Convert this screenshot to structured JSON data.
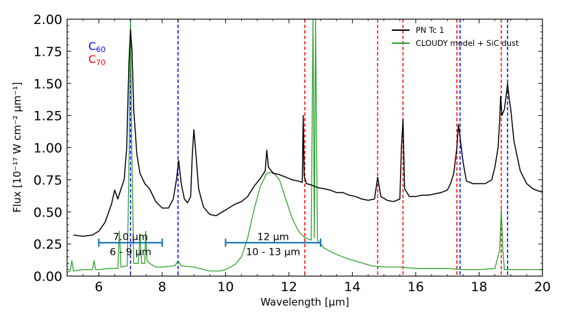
{
  "chart_data": {
    "type": "line",
    "xlabel": "Wavelength [μm]",
    "ylabel": "Flux [10⁻¹⁷ W cm⁻² μm⁻¹]",
    "xlim": [
      5,
      20
    ],
    "ylim": [
      0,
      2.0
    ],
    "x_ticks": [
      6,
      8,
      10,
      12,
      14,
      16,
      18,
      20
    ],
    "x_tick_labels": [
      "6",
      "8",
      "10",
      "12",
      "14",
      "16",
      "18",
      "20"
    ],
    "y_ticks": [
      0.0,
      0.25,
      0.5,
      0.75,
      1.0,
      1.25,
      1.5,
      1.75,
      2.0
    ],
    "y_tick_labels": [
      "0.00",
      "0.25",
      "0.50",
      "0.75",
      "1.00",
      "1.25",
      "1.50",
      "1.75",
      "2.00"
    ],
    "legend": {
      "position": "top-right",
      "entries": [
        {
          "label": "PN Tc 1",
          "color": "#000000"
        },
        {
          "label": "CLOUDY model + SiC dust",
          "color": "#2ca02c"
        }
      ]
    },
    "molecule_labels": [
      {
        "base": "C",
        "sub": "60",
        "color": "#0000ff"
      },
      {
        "base": "C",
        "sub": "70",
        "color": "#ff0000"
      }
    ],
    "c60_lines": [
      7.0,
      8.5,
      17.4,
      18.9
    ],
    "c70_lines": [
      12.5,
      14.8,
      15.6,
      17.3,
      18.7
    ],
    "brackets": [
      {
        "x_start": 6.0,
        "x_end": 8.0,
        "y": 0.26,
        "label_top": "7.0 μm",
        "label_bottom": "6 - 9 μm"
      },
      {
        "x_start": 10.0,
        "x_end": 13.0,
        "y": 0.26,
        "label_top": "12 μm",
        "label_bottom": "10 - 13 μm"
      }
    ],
    "series": [
      {
        "name": "PN Tc 1",
        "color": "#000000",
        "x": [
          5.2,
          5.5,
          5.8,
          6.0,
          6.2,
          6.4,
          6.5,
          6.6,
          6.7,
          6.8,
          6.88,
          6.95,
          7.0,
          7.05,
          7.1,
          7.2,
          7.3,
          7.45,
          7.6,
          7.8,
          8.0,
          8.2,
          8.35,
          8.45,
          8.52,
          8.6,
          8.7,
          8.8,
          8.9,
          8.95,
          9.0,
          9.08,
          9.15,
          9.3,
          9.5,
          9.7,
          9.9,
          10.1,
          10.3,
          10.5,
          10.7,
          10.9,
          11.1,
          11.25,
          11.3,
          11.35,
          11.5,
          11.7,
          11.9,
          12.1,
          12.3,
          12.42,
          12.45,
          12.48,
          12.55,
          12.7,
          12.9,
          13.1,
          13.3,
          13.5,
          13.7,
          13.9,
          14.1,
          14.3,
          14.5,
          14.7,
          14.8,
          14.9,
          15.1,
          15.3,
          15.5,
          15.55,
          15.6,
          15.65,
          15.8,
          16.0,
          16.2,
          16.4,
          16.6,
          16.8,
          17.0,
          17.1,
          17.2,
          17.3,
          17.35,
          17.4,
          17.5,
          17.6,
          17.8,
          18.0,
          18.2,
          18.4,
          18.5,
          18.6,
          18.65,
          18.68,
          18.72,
          18.8,
          18.9,
          18.95,
          19.0,
          19.1,
          19.3,
          19.5,
          19.7,
          19.9,
          20.0
        ],
        "y": [
          0.32,
          0.31,
          0.32,
          0.35,
          0.42,
          0.56,
          0.67,
          0.6,
          0.68,
          0.75,
          1.0,
          1.65,
          1.92,
          1.75,
          1.3,
          0.95,
          0.8,
          0.72,
          0.68,
          0.58,
          0.53,
          0.53,
          0.6,
          0.75,
          0.9,
          0.72,
          0.6,
          0.57,
          0.62,
          0.95,
          1.14,
          0.9,
          0.68,
          0.54,
          0.48,
          0.47,
          0.5,
          0.53,
          0.56,
          0.58,
          0.62,
          0.7,
          0.76,
          0.82,
          0.98,
          0.85,
          0.8,
          0.79,
          0.77,
          0.75,
          0.74,
          0.73,
          1.25,
          0.78,
          0.72,
          0.71,
          0.69,
          0.68,
          0.67,
          0.65,
          0.65,
          0.63,
          0.62,
          0.6,
          0.59,
          0.6,
          0.77,
          0.62,
          0.59,
          0.58,
          0.6,
          1.0,
          1.22,
          0.68,
          0.62,
          0.62,
          0.63,
          0.63,
          0.64,
          0.65,
          0.67,
          0.72,
          0.8,
          1.0,
          1.18,
          1.08,
          0.88,
          0.74,
          0.72,
          0.72,
          0.72,
          0.75,
          0.85,
          1.0,
          1.2,
          1.4,
          1.25,
          1.3,
          1.5,
          1.38,
          1.3,
          1.05,
          0.82,
          0.72,
          0.68,
          0.66,
          0.66
        ]
      },
      {
        "name": "CLOUDY model + SiC dust",
        "color": "#2ca02c",
        "x": [
          5.0,
          5.1,
          5.15,
          5.2,
          5.5,
          5.8,
          5.85,
          5.9,
          6.0,
          6.3,
          6.6,
          6.65,
          6.7,
          6.9,
          6.96,
          7.0,
          7.04,
          7.1,
          7.25,
          7.3,
          7.35,
          7.45,
          7.48,
          7.52,
          7.6,
          7.8,
          8.0,
          8.4,
          8.5,
          8.6,
          9.0,
          9.5,
          9.8,
          10.0,
          10.3,
          10.5,
          10.7,
          10.9,
          11.1,
          11.3,
          11.5,
          11.7,
          11.9,
          12.1,
          12.3,
          12.5,
          12.7,
          12.76,
          12.8,
          12.84,
          12.9,
          13.1,
          13.4,
          13.8,
          14.2,
          14.6,
          15.0,
          15.5,
          16.0,
          16.5,
          17.0,
          17.5,
          18.0,
          18.5,
          18.65,
          18.7,
          18.75,
          18.8,
          19.0,
          19.5,
          20.0
        ],
        "y": [
          0.03,
          0.04,
          0.12,
          0.04,
          0.05,
          0.05,
          0.12,
          0.05,
          0.05,
          0.06,
          0.06,
          0.35,
          0.07,
          0.08,
          1.0,
          2.0,
          1.0,
          0.1,
          0.1,
          0.33,
          0.1,
          0.1,
          0.35,
          0.12,
          0.1,
          0.07,
          0.07,
          0.08,
          0.12,
          0.08,
          0.07,
          0.04,
          0.04,
          0.05,
          0.09,
          0.15,
          0.3,
          0.52,
          0.7,
          0.8,
          0.81,
          0.75,
          0.6,
          0.45,
          0.35,
          0.3,
          0.28,
          2.0,
          0.3,
          2.0,
          0.28,
          0.22,
          0.18,
          0.14,
          0.11,
          0.08,
          0.07,
          0.07,
          0.06,
          0.06,
          0.06,
          0.05,
          0.05,
          0.06,
          0.2,
          0.52,
          0.2,
          0.05,
          0.05,
          0.05,
          0.05
        ]
      }
    ]
  }
}
